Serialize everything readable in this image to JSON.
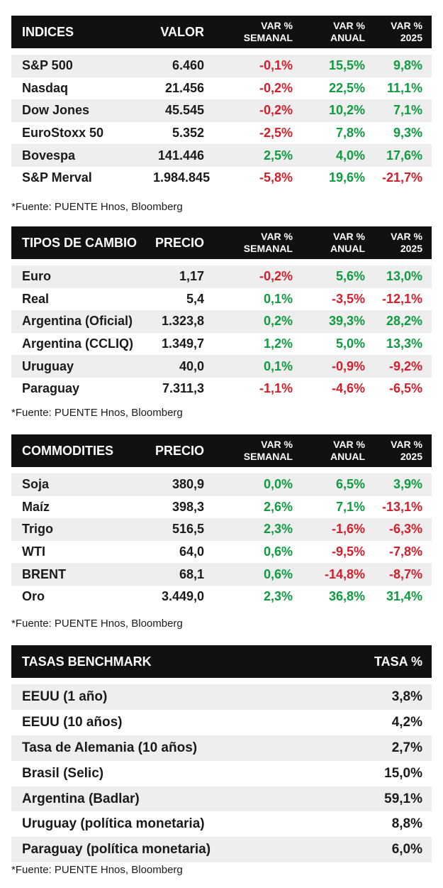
{
  "tables": [
    {
      "id": "indices",
      "headers": {
        "name": "INDICES",
        "value": "VALOR",
        "weekly": [
          "VAR %",
          "SEMANAL"
        ],
        "annual": [
          "VAR %",
          "ANUAL"
        ],
        "ytd": [
          "VAR %",
          "2025"
        ]
      },
      "rows": [
        {
          "name": "S&P 500",
          "value": "6.460",
          "weekly": "-0,1%",
          "annual": "15,5%",
          "ytd": "9,8%"
        },
        {
          "name": "Nasdaq",
          "value": "21.456",
          "weekly": "-0,2%",
          "annual": "22,5%",
          "ytd": "11,1%"
        },
        {
          "name": "Dow Jones",
          "value": "45.545",
          "weekly": "-0,2%",
          "annual": "10,2%",
          "ytd": "7,1%"
        },
        {
          "name": "EuroStoxx 50",
          "value": "5.352",
          "weekly": "-2,5%",
          "annual": "7,8%",
          "ytd": "9,3%"
        },
        {
          "name": "Bovespa",
          "value": "141.446",
          "weekly": "2,5%",
          "annual": "4,0%",
          "ytd": "17,6%"
        },
        {
          "name": "S&P Merval",
          "value": "1.984.845",
          "weekly": "-5,8%",
          "annual": "19,6%",
          "ytd": "-21,7%"
        }
      ],
      "source": "*Fuente: PUENTE Hnos, Bloomberg"
    },
    {
      "id": "tipos-de-cambio",
      "headers": {
        "name": "TIPOS DE CAMBIO",
        "value": "PRECIO",
        "weekly": [
          "VAR %",
          "SEMANAL"
        ],
        "annual": [
          "VAR %",
          "ANUAL"
        ],
        "ytd": [
          "VAR %",
          "2025"
        ]
      },
      "rows": [
        {
          "name": "Euro",
          "value": "1,17",
          "weekly": "-0,2%",
          "annual": "5,6%",
          "ytd": "13,0%"
        },
        {
          "name": "Real",
          "value": "5,4",
          "weekly": "0,1%",
          "annual": "-3,5%",
          "ytd": "-12,1%"
        },
        {
          "name": "Argentina (Oficial)",
          "value": "1.323,8",
          "weekly": "0,2%",
          "annual": "39,3%",
          "ytd": "28,2%"
        },
        {
          "name": "Argentina (CCLIQ)",
          "value": "1.349,7",
          "weekly": "1,2%",
          "annual": "5,0%",
          "ytd": "13,3%"
        },
        {
          "name": "Uruguay",
          "value": "40,0",
          "weekly": "0,1%",
          "annual": "-0,9%",
          "ytd": "-9,2%"
        },
        {
          "name": "Paraguay",
          "value": "7.311,3",
          "weekly": "-1,1%",
          "annual": "-4,6%",
          "ytd": "-6,5%"
        }
      ],
      "source": "*Fuente: PUENTE Hnos, Bloomberg"
    },
    {
      "id": "commodities",
      "headers": {
        "name": "COMMODITIES",
        "value": "PRECIO",
        "weekly": [
          "VAR %",
          "SEMANAL"
        ],
        "annual": [
          "VAR %",
          "ANUAL"
        ],
        "ytd": [
          "VAR %",
          "2025"
        ]
      },
      "rows": [
        {
          "name": "Soja",
          "value": "380,9",
          "weekly": "0,0%",
          "annual": "6,5%",
          "ytd": "3,9%"
        },
        {
          "name": "Maíz",
          "value": "398,3",
          "weekly": "2,6%",
          "annual": "7,1%",
          "ytd": "-13,1%"
        },
        {
          "name": "Trigo",
          "value": "516,5",
          "weekly": "2,3%",
          "annual": "-1,6%",
          "ytd": "-6,3%"
        },
        {
          "name": "WTI",
          "value": "64,0",
          "weekly": "0,6%",
          "annual": "-9,5%",
          "ytd": "-7,8%"
        },
        {
          "name": "BRENT",
          "value": "68,1",
          "weekly": "0,6%",
          "annual": "-14,8%",
          "ytd": "-8,7%"
        },
        {
          "name": "Oro",
          "value": "3.449,0",
          "weekly": "2,3%",
          "annual": "36,8%",
          "ytd": "31,4%"
        }
      ],
      "source": "*Fuente: PUENTE Hnos, Bloomberg"
    }
  ],
  "tasas": {
    "headers": {
      "name": "TASAS BENCHMARK",
      "rate": "TASA %"
    },
    "rows": [
      {
        "name": "EEUU (1 año)",
        "rate": "3,8%"
      },
      {
        "name": "EEUU (10 años)",
        "rate": "4,2%"
      },
      {
        "name": "Tasa de Alemania (10 años)",
        "rate": "2,7%"
      },
      {
        "name": "Brasil (Selic)",
        "rate": "15,0%"
      },
      {
        "name": "Argentina (Badlar)",
        "rate": "59,1%"
      },
      {
        "name": "Uruguay (política monetaria)",
        "rate": "8,8%"
      },
      {
        "name": "Paraguay (política monetaria)",
        "rate": "6,0%"
      }
    ],
    "source": "*Fuente: PUENTE Hnos, Bloomberg"
  },
  "colors": {
    "header_bg": "#111111",
    "stripe": "#eeeeee",
    "positive": "#0f9b3f",
    "negative": "#d21f2b"
  }
}
